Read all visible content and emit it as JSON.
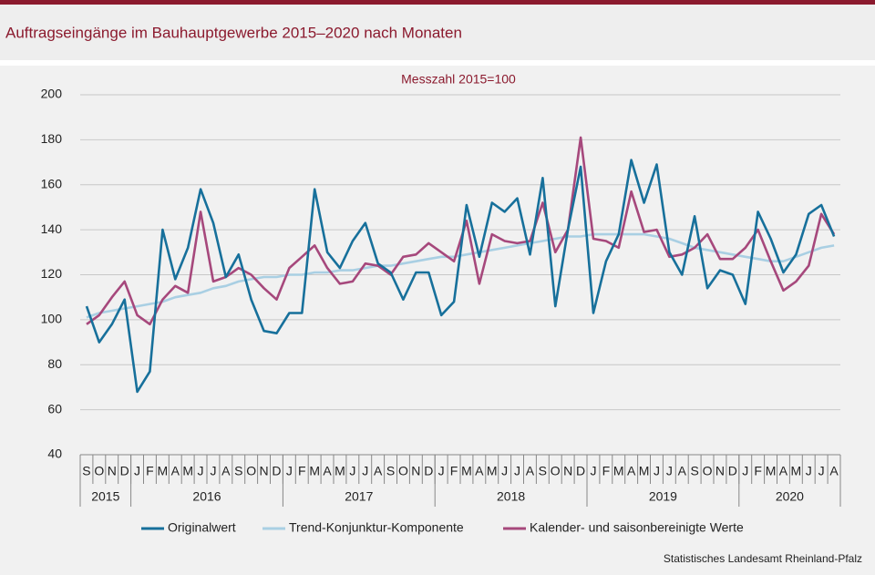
{
  "chart_data": {
    "type": "line",
    "title": "Auftragseingänge im Bauhauptgewerbe 2015–2020 nach Monaten",
    "subtitle": "Messzahl  2015=100",
    "source": "Statistisches Landesamt  Rheinland-Pfalz",
    "categories": [
      "S",
      "O",
      "N",
      "D",
      "J",
      "F",
      "M",
      "A",
      "M",
      "J",
      "J",
      "A",
      "S",
      "O",
      "N",
      "D",
      "J",
      "F",
      "M",
      "A",
      "M",
      "J",
      "J",
      "A",
      "S",
      "O",
      "N",
      "D",
      "J",
      "F",
      "M",
      "A",
      "M",
      "J",
      "J",
      "A",
      "S",
      "O",
      "N",
      "D",
      "J",
      "F",
      "M",
      "A",
      "M",
      "J",
      "J",
      "A",
      "S",
      "O",
      "N",
      "D",
      "J",
      "F",
      "M",
      "A",
      "M",
      "J",
      "J",
      "A"
    ],
    "year_groups": [
      {
        "label": "2015",
        "count": 4
      },
      {
        "label": "2016",
        "count": 12
      },
      {
        "label": "2017",
        "count": 12
      },
      {
        "label": "2018",
        "count": 12
      },
      {
        "label": "2019",
        "count": 12
      },
      {
        "label": "2020",
        "count": 8
      }
    ],
    "series": [
      {
        "name": "Originalwert",
        "color": "#17709b",
        "values": [
          106,
          90,
          98,
          109,
          68,
          77,
          140,
          118,
          132,
          158,
          143,
          119,
          129,
          109,
          95,
          94,
          103,
          103,
          158,
          130,
          123,
          135,
          143,
          125,
          121,
          109,
          121,
          121,
          102,
          108,
          151,
          128,
          152,
          148,
          154,
          129,
          163,
          106,
          140,
          168,
          103,
          126,
          138,
          171,
          152,
          169,
          130,
          120,
          146,
          114,
          122,
          120,
          107,
          148,
          136,
          121,
          129,
          147,
          151,
          137
        ]
      },
      {
        "name": "Trend-Konjunktur-Komponente",
        "color": "#a9cfe3",
        "values": [
          101,
          103,
          104,
          105,
          106,
          107,
          108,
          110,
          111,
          112,
          114,
          115,
          117,
          118,
          119,
          119,
          120,
          120,
          121,
          121,
          122,
          122,
          123,
          124,
          124,
          125,
          126,
          127,
          128,
          128,
          129,
          130,
          131,
          132,
          133,
          134,
          135,
          136,
          137,
          137,
          138,
          138,
          138,
          138,
          138,
          137,
          136,
          134,
          132,
          131,
          130,
          129,
          128,
          127,
          126,
          126,
          128,
          130,
          132,
          133
        ]
      },
      {
        "name": "Kalender- und saisonbereinigte Werte",
        "color": "#a6487c",
        "values": [
          98,
          102,
          110,
          117,
          102,
          98,
          109,
          115,
          112,
          148,
          117,
          119,
          123,
          120,
          114,
          109,
          123,
          128,
          133,
          123,
          116,
          117,
          125,
          124,
          120,
          128,
          129,
          134,
          130,
          126,
          144,
          116,
          138,
          135,
          134,
          135,
          152,
          130,
          140,
          181,
          136,
          135,
          132,
          157,
          139,
          140,
          128,
          129,
          132,
          138,
          127,
          127,
          132,
          140,
          126,
          113,
          117,
          124,
          147,
          138
        ]
      }
    ],
    "ylim": [
      40,
      200
    ],
    "yticks": [
      40,
      60,
      80,
      100,
      120,
      140,
      160,
      180,
      200
    ],
    "grid": true,
    "legend": "bottom"
  }
}
